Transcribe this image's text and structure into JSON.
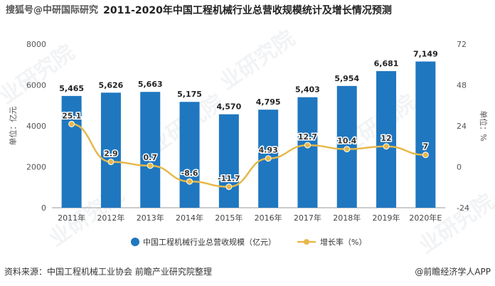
{
  "page": {
    "watermark_top": "搜狐号@中研国际研究",
    "title": "2011-2020年中国工程机械行业总营收规模统计及增长情况预测",
    "watermark_text": "业研究院",
    "source": "资料来源：中国工程机械工业协会 前瞻产业研究院整理",
    "brand": "@前瞻经济学人APP"
  },
  "chart_data": {
    "type": "bar",
    "categories": [
      "2011年",
      "2012年",
      "2013年",
      "2014年",
      "2015年",
      "2016年",
      "2017年",
      "2018年",
      "2019年",
      "2020年E"
    ],
    "series": [
      {
        "name": "中国工程机械行业总营收规模（亿元）",
        "type": "bar",
        "axis": "left",
        "color": "#1f77c0",
        "values": [
          5465,
          5626,
          5663,
          5175,
          4570,
          4795,
          5403,
          5954,
          6681,
          7149
        ],
        "labels": [
          "5,465",
          "5,626",
          "5,663",
          "5,175",
          "4,570",
          "4,795",
          "5,403",
          "5,954",
          "6,681",
          "7,149"
        ]
      },
      {
        "name": "增长率（%）",
        "type": "line",
        "axis": "right",
        "color": "#e6b84a",
        "values": [
          25.1,
          2.9,
          0.7,
          -8.6,
          -11.7,
          4.93,
          12.7,
          10.4,
          12,
          7
        ],
        "labels": [
          "25.1",
          "2.9",
          "0.7",
          "-8.6",
          "-11.7",
          "4.93",
          "12.7",
          "10.4",
          "12",
          "7"
        ]
      }
    ],
    "ylabel_left": "单位：亿元",
    "ylabel_right": "单位：%",
    "ylim_left": [
      0,
      8000
    ],
    "yticks_left": [
      "0",
      "2000",
      "4000",
      "6000",
      "8000"
    ],
    "ylim_right": [
      -24,
      72
    ],
    "yticks_right": [
      "-24",
      "0",
      "24",
      "48",
      "72"
    ],
    "legend_position": "bottom",
    "grid": false
  }
}
